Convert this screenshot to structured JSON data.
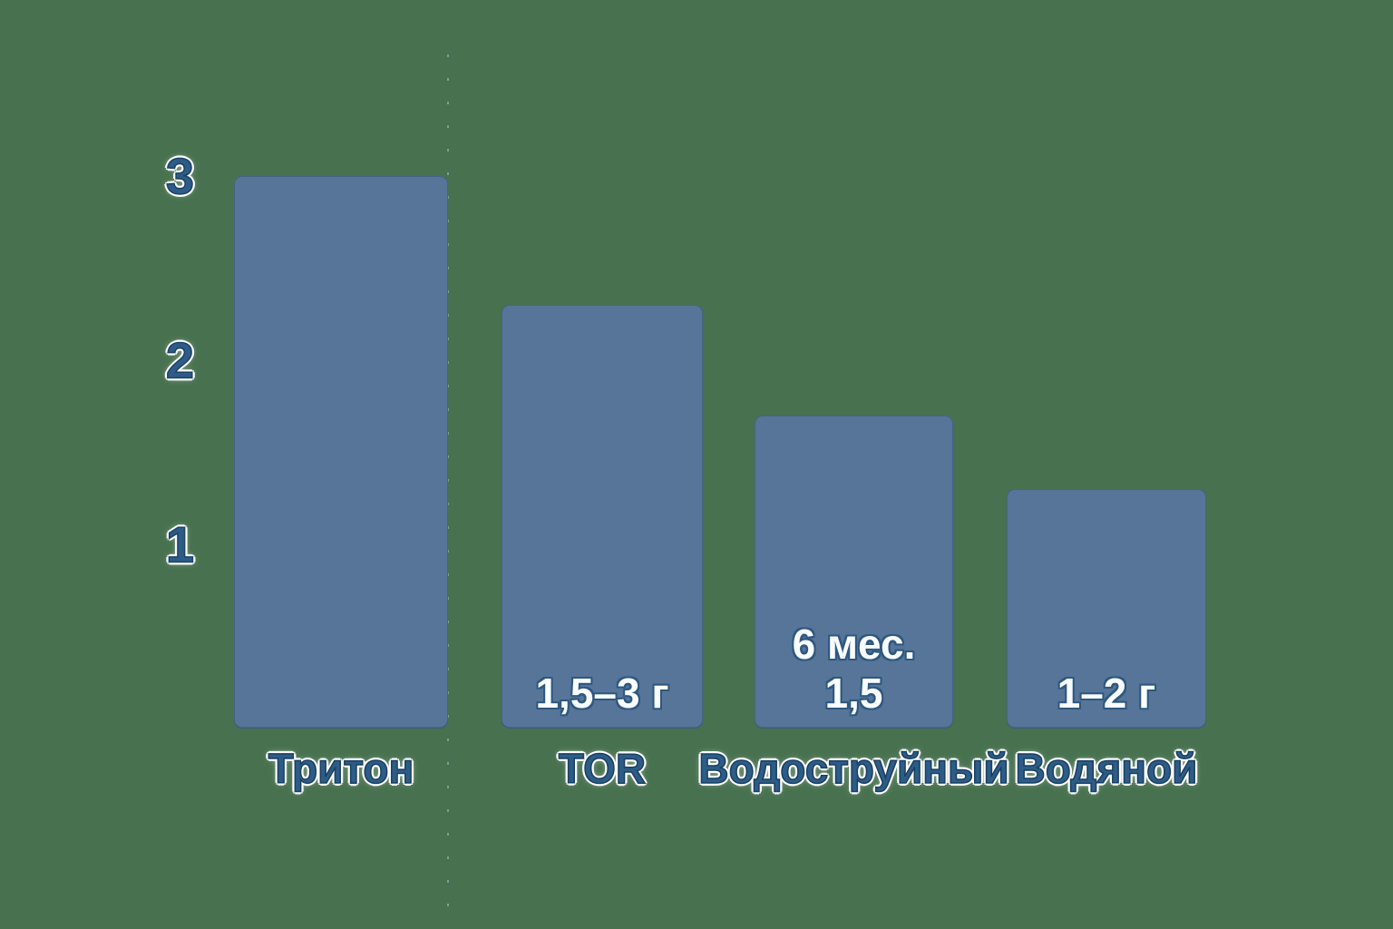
{
  "chart_data": {
    "type": "bar",
    "title": "",
    "categories": [
      "Тритон",
      "TOR",
      "Водоструйный",
      "Водяной"
    ],
    "values": [
      3,
      2.3,
      1.7,
      1.3
    ],
    "annotations": [
      {
        "lines": []
      },
      {
        "lines": [
          "1,5–3 г"
        ]
      },
      {
        "lines": [
          "6 мес.",
          "1,5"
        ]
      },
      {
        "lines": [
          "1–2 г"
        ]
      }
    ],
    "yticks": [
      "3",
      "2",
      "1"
    ],
    "ylim": [
      0,
      3.2
    ],
    "grid": "off",
    "legend": "none",
    "colors": {
      "background": "#47714f",
      "bar": "#567598",
      "label_text": "#2d5c86",
      "annotation_text": "#fafdff",
      "guide_dots": "#bcd6e8"
    }
  }
}
